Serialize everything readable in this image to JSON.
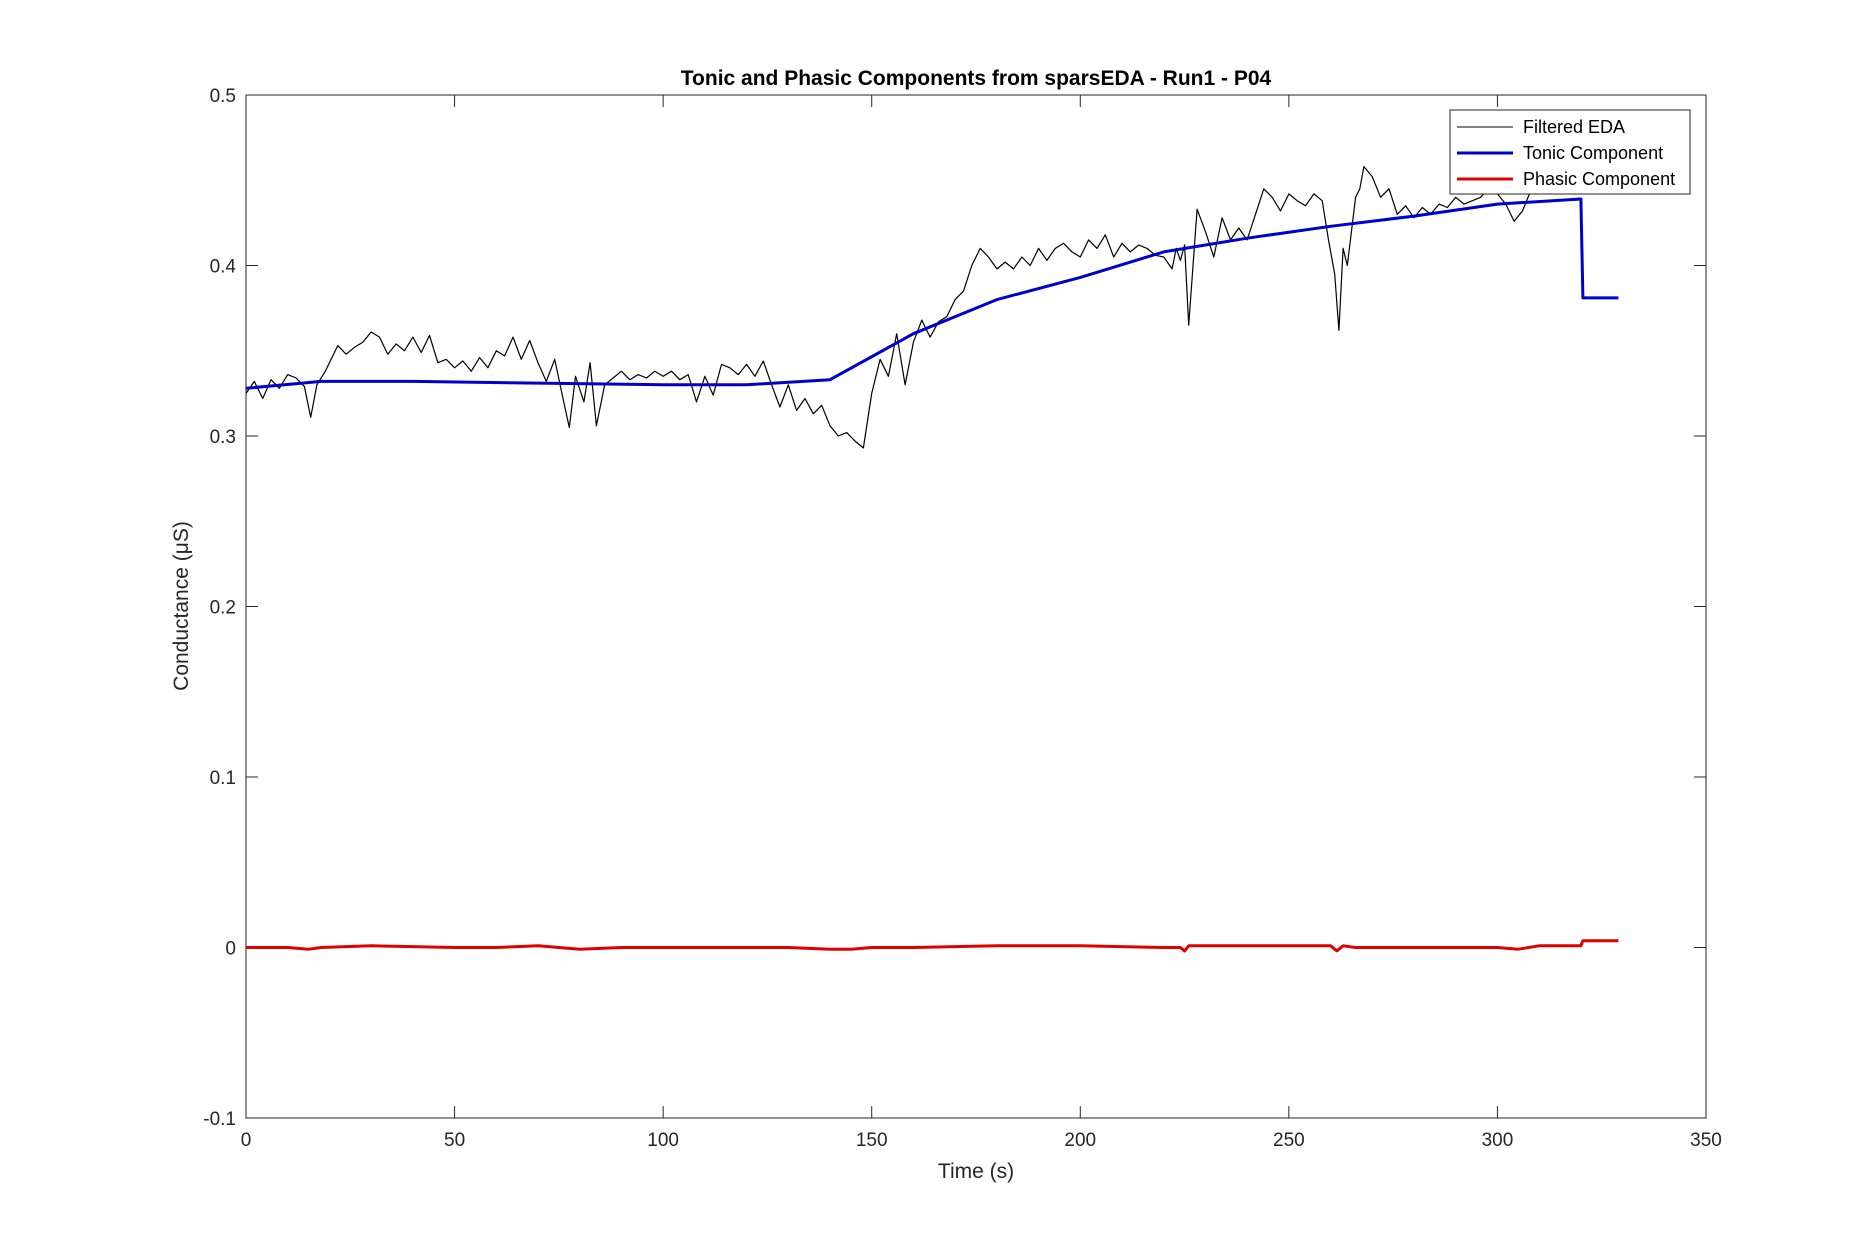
{
  "chart_data": {
    "type": "line",
    "title": "Tonic and Phasic Components from sparsEDA - Run1 - P04",
    "xlabel": "Time (s)",
    "ylabel": "Conductance (μS)",
    "xlim": [
      0,
      350
    ],
    "ylim": [
      -0.1,
      0.5
    ],
    "xticks": [
      "0",
      "50",
      "100",
      "150",
      "200",
      "250",
      "300",
      "350"
    ],
    "yticks": [
      "-0.1",
      "0",
      "0.1",
      "0.2",
      "0.3",
      "0.4",
      "0.5"
    ],
    "grid": false,
    "legend_position": "top-right",
    "series": [
      {
        "name": "Filtered EDA",
        "color": "#000000",
        "x": [
          0,
          2,
          4,
          6,
          8,
          10,
          12,
          14,
          15.5,
          17,
          19,
          20,
          22,
          24,
          26,
          28,
          30,
          32,
          34,
          36,
          38,
          40,
          42,
          44,
          46,
          48,
          50,
          52,
          54,
          56,
          58,
          60,
          62,
          64,
          66,
          68,
          70,
          72,
          74,
          76,
          77.5,
          79,
          81,
          82.5,
          84,
          86,
          88,
          90,
          92,
          94,
          96,
          98,
          100,
          102,
          104,
          106,
          108,
          110,
          112,
          114,
          116,
          118,
          120,
          122,
          124,
          126,
          128,
          130,
          132,
          134,
          136,
          138,
          140,
          142,
          144,
          146,
          148,
          150,
          152,
          154,
          156,
          158,
          160,
          162,
          164,
          166,
          168,
          170,
          172,
          174,
          176,
          178,
          180,
          182,
          184,
          186,
          188,
          190,
          192,
          194,
          196,
          198,
          200,
          202,
          204,
          206,
          208,
          210,
          212,
          214,
          216,
          218,
          220,
          222,
          223,
          224,
          225,
          226,
          228,
          230,
          232,
          234,
          236,
          238,
          240,
          242,
          244,
          246,
          248,
          250,
          252,
          254,
          256,
          258,
          259.5,
          261,
          262,
          263,
          264,
          266,
          267,
          268,
          270,
          272,
          274,
          276,
          278,
          280,
          282,
          284,
          286,
          288,
          290,
          292,
          294,
          296,
          298,
          300,
          302,
          304,
          306,
          308,
          310
        ],
        "y": [
          0.325,
          0.332,
          0.322,
          0.333,
          0.328,
          0.336,
          0.334,
          0.329,
          0.311,
          0.33,
          0.338,
          0.343,
          0.353,
          0.348,
          0.352,
          0.355,
          0.361,
          0.358,
          0.348,
          0.354,
          0.35,
          0.358,
          0.349,
          0.359,
          0.343,
          0.345,
          0.34,
          0.344,
          0.338,
          0.346,
          0.34,
          0.35,
          0.347,
          0.358,
          0.345,
          0.356,
          0.343,
          0.332,
          0.345,
          0.322,
          0.305,
          0.335,
          0.32,
          0.343,
          0.306,
          0.33,
          0.334,
          0.338,
          0.333,
          0.336,
          0.334,
          0.338,
          0.335,
          0.338,
          0.333,
          0.336,
          0.32,
          0.335,
          0.324,
          0.342,
          0.34,
          0.336,
          0.342,
          0.335,
          0.344,
          0.33,
          0.317,
          0.33,
          0.315,
          0.322,
          0.313,
          0.318,
          0.306,
          0.3,
          0.302,
          0.297,
          0.293,
          0.325,
          0.345,
          0.335,
          0.36,
          0.33,
          0.355,
          0.368,
          0.358,
          0.367,
          0.37,
          0.38,
          0.385,
          0.4,
          0.41,
          0.405,
          0.398,
          0.402,
          0.398,
          0.405,
          0.4,
          0.41,
          0.403,
          0.41,
          0.413,
          0.408,
          0.405,
          0.415,
          0.41,
          0.418,
          0.405,
          0.413,
          0.408,
          0.412,
          0.41,
          0.406,
          0.405,
          0.398,
          0.41,
          0.403,
          0.412,
          0.365,
          0.433,
          0.42,
          0.405,
          0.428,
          0.415,
          0.422,
          0.415,
          0.43,
          0.445,
          0.44,
          0.432,
          0.442,
          0.438,
          0.435,
          0.442,
          0.438,
          0.415,
          0.395,
          0.362,
          0.41,
          0.4,
          0.44,
          0.445,
          0.458,
          0.452,
          0.44,
          0.445,
          0.43,
          0.435,
          0.428,
          0.434,
          0.43,
          0.436,
          0.434,
          0.44,
          0.436,
          0.438,
          0.44,
          0.446,
          0.442,
          0.436,
          0.426,
          0.432,
          0.444,
          0.448
        ]
      },
      {
        "name": "Tonic Component",
        "color": "#0000cc",
        "x": [
          0,
          18,
          40,
          100,
          120,
          140,
          160,
          180,
          200,
          220,
          240,
          260,
          280,
          300,
          320,
          320.5,
          329
        ],
        "y": [
          0.328,
          0.332,
          0.332,
          0.33,
          0.33,
          0.333,
          0.36,
          0.38,
          0.393,
          0.408,
          0.416,
          0.423,
          0.429,
          0.436,
          0.439,
          0.381,
          0.381
        ]
      },
      {
        "name": "Phasic Component",
        "color": "#e00000",
        "x": [
          0,
          10,
          15,
          18,
          30,
          50,
          60,
          70,
          75,
          80,
          90,
          110,
          130,
          140,
          145,
          150,
          160,
          180,
          200,
          220,
          224,
          225,
          226,
          240,
          260,
          261.5,
          263,
          266,
          280,
          300,
          305,
          310,
          320,
          320.5,
          329
        ],
        "y": [
          0.0,
          0.0,
          -0.001,
          0.0,
          0.001,
          0.0,
          0.0,
          0.001,
          0.0,
          -0.001,
          0.0,
          0.0,
          0.0,
          -0.001,
          -0.001,
          0.0,
          0.0,
          0.001,
          0.001,
          0.0,
          0.0,
          -0.002,
          0.001,
          0.001,
          0.001,
          -0.002,
          0.001,
          0.0,
          0.0,
          0.0,
          -0.001,
          0.001,
          0.001,
          0.004,
          0.004
        ]
      }
    ]
  }
}
